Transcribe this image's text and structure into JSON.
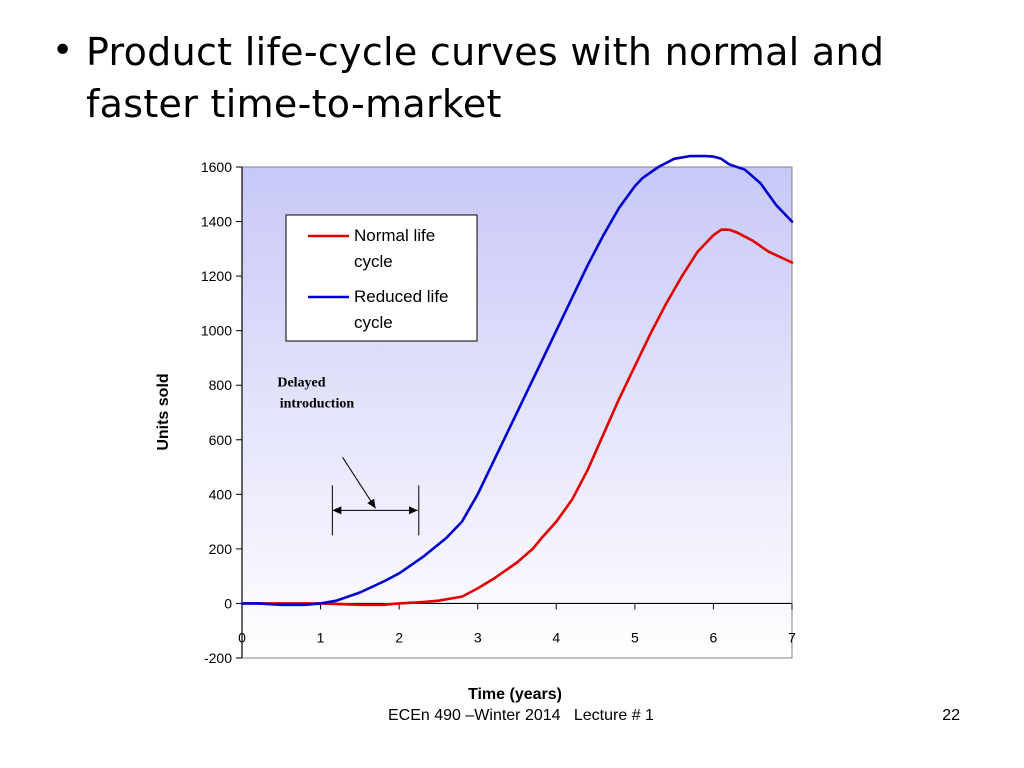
{
  "slide": {
    "bullet": "Product life-cycle curves with normal and faster time-to-market",
    "footer": "ECEn 490 –Winter 2014   Lecture # 1",
    "page_number": "22"
  },
  "chart_data": {
    "type": "line",
    "title": "",
    "xlabel": "Time (years)",
    "ylabel": "Units sold",
    "xlim": [
      0,
      7
    ],
    "ylim": [
      -200,
      1600
    ],
    "x_ticks": [
      "0",
      "1",
      "2",
      "3",
      "4",
      "5",
      "6",
      "7"
    ],
    "y_ticks": [
      "1600",
      "1400",
      "1200",
      "1000",
      "800",
      "600",
      "400",
      "200",
      "0",
      "-200"
    ],
    "grid": false,
    "legend_position": "top-left",
    "plot_background": [
      "#c8c8f8",
      "#ffffff"
    ],
    "series": [
      {
        "name": "Normal life cycle",
        "color": "#e00000",
        "x": [
          0,
          0.5,
          1,
          1.5,
          1.8,
          2,
          2.3,
          2.5,
          2.8,
          3,
          3.2,
          3.5,
          3.7,
          3.8,
          4,
          4.2,
          4.4,
          4.6,
          4.8,
          5,
          5.2,
          5.4,
          5.6,
          5.8,
          6,
          6.1,
          6.2,
          6.3,
          6.5,
          6.7,
          7
        ],
        "y": [
          0,
          0,
          0,
          -5,
          -5,
          0,
          5,
          10,
          25,
          55,
          90,
          150,
          200,
          235,
          300,
          380,
          490,
          620,
          750,
          870,
          990,
          1100,
          1200,
          1290,
          1350,
          1370,
          1370,
          1360,
          1330,
          1290,
          1250
        ]
      },
      {
        "name": "Reduced life cycle",
        "color": "#0000d0",
        "x": [
          0,
          0.2,
          0.5,
          0.8,
          1,
          1.2,
          1.5,
          1.8,
          2,
          2.3,
          2.6,
          2.8,
          3,
          3.2,
          3.4,
          3.6,
          3.8,
          4,
          4.2,
          4.4,
          4.6,
          4.8,
          5,
          5.1,
          5.3,
          5.5,
          5.7,
          5.9,
          6,
          6.1,
          6.2,
          6.4,
          6.6,
          6.8,
          7
        ],
        "y": [
          0,
          0,
          -5,
          -5,
          0,
          10,
          40,
          80,
          110,
          170,
          240,
          300,
          400,
          520,
          640,
          760,
          880,
          1000,
          1120,
          1240,
          1350,
          1450,
          1530,
          1560,
          1600,
          1630,
          1640,
          1640,
          1638,
          1630,
          1610,
          1590,
          1540,
          1460,
          1400
        ]
      }
    ],
    "annotations": [
      {
        "text": [
          "Delayed",
          "introduction"
        ],
        "span_x": [
          1.15,
          2.25
        ],
        "y": 400
      }
    ]
  }
}
